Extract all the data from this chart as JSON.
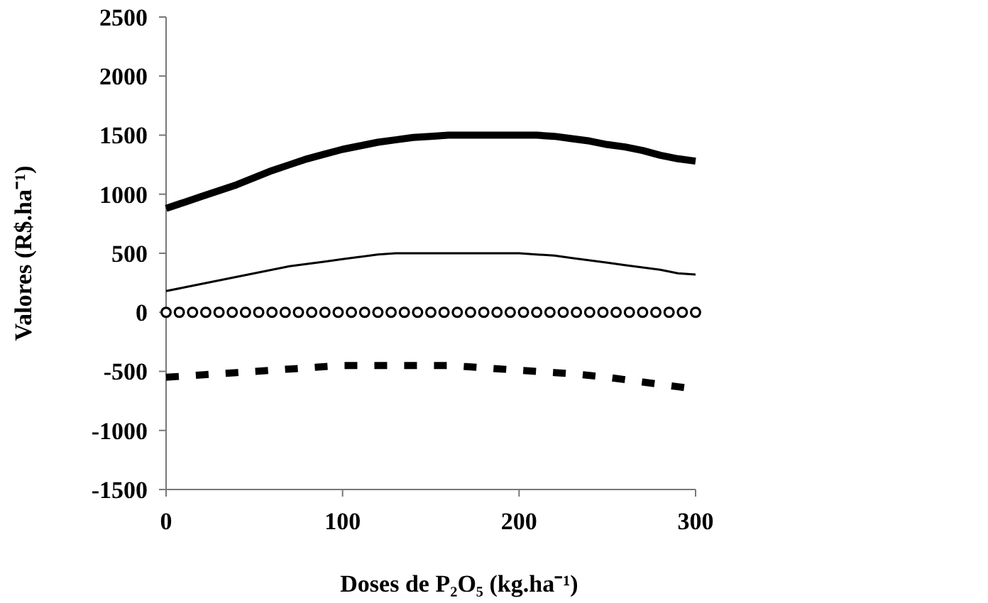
{
  "chart_data": {
    "type": "line",
    "xlabel": "Doses de P₂O₅ (kg.ha⁻¹)",
    "ylabel": "Valores (R$.ha⁻¹)",
    "x": [
      0,
      10,
      20,
      30,
      40,
      50,
      60,
      70,
      80,
      90,
      100,
      110,
      120,
      130,
      140,
      150,
      160,
      170,
      180,
      190,
      200,
      210,
      220,
      230,
      240,
      250,
      260,
      270,
      280,
      290,
      300
    ],
    "xlim": [
      0,
      300
    ],
    "xticks": [
      0,
      100,
      200,
      300
    ],
    "ylim": [
      -1500,
      2500
    ],
    "yticks": [
      -1500,
      -1000,
      -500,
      0,
      500,
      1000,
      1500,
      2000,
      2500
    ],
    "grid": false,
    "series": [
      {
        "color": "#000000",
        "marker": "none",
        "line_style": "solid",
        "values": [
          880,
          930,
          980,
          1030,
          1080,
          1140,
          1200,
          1250,
          1300,
          1340,
          1380,
          1410,
          1440,
          1460,
          1480,
          1490,
          1500,
          1500,
          1500,
          1500,
          1500,
          1500,
          1490,
          1470,
          1450,
          1420,
          1400,
          1370,
          1330,
          1300,
          1280
        ]
      },
      {
        "color": "#000000",
        "marker": "none",
        "line_style": "solid",
        "values": [
          180,
          210,
          240,
          270,
          300,
          330,
          360,
          390,
          410,
          430,
          450,
          470,
          490,
          500,
          500,
          500,
          500,
          500,
          500,
          500,
          500,
          490,
          480,
          460,
          440,
          420,
          400,
          380,
          360,
          330,
          320
        ]
      },
      {
        "type": "scatter",
        "color": "#000000",
        "marker": "circle",
        "x": [
          0,
          7.5,
          15,
          22.5,
          30,
          37.5,
          45,
          52.5,
          60,
          67.5,
          75,
          82.5,
          90,
          97.5,
          105,
          112.5,
          120,
          127.5,
          135,
          142.5,
          150,
          157.5,
          165,
          172.5,
          180,
          187.5,
          195,
          202.5,
          210,
          217.5,
          225,
          232.5,
          240,
          247.5,
          255,
          262.5,
          270,
          277.5,
          285,
          292.5,
          300
        ],
        "values": [
          0,
          0,
          0,
          0,
          0,
          0,
          0,
          0,
          0,
          0,
          0,
          0,
          0,
          0,
          0,
          0,
          0,
          0,
          0,
          0,
          0,
          0,
          0,
          0,
          0,
          0,
          0,
          0,
          0,
          0,
          0,
          0,
          0,
          0,
          0,
          0,
          0,
          0,
          0,
          0,
          0
        ]
      },
      {
        "color": "#000000",
        "marker": "none",
        "line_style": "dashed",
        "values": [
          -550,
          -540,
          -530,
          -520,
          -510,
          -500,
          -490,
          -480,
          -470,
          -460,
          -450,
          -450,
          -450,
          -450,
          -450,
          -450,
          -450,
          -460,
          -470,
          -480,
          -490,
          -500,
          -510,
          -520,
          -535,
          -550,
          -570,
          -590,
          -610,
          -630,
          -650
        ]
      }
    ]
  }
}
